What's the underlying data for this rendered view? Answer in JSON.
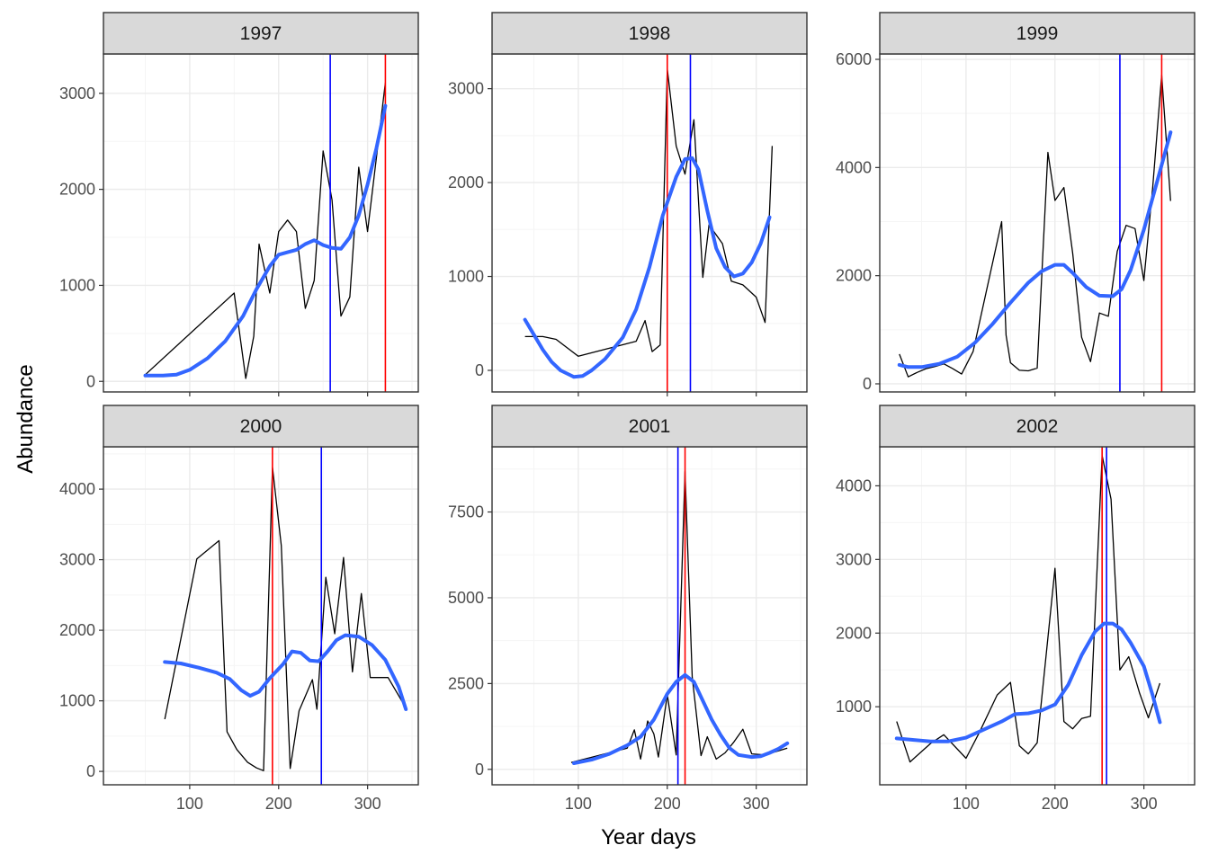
{
  "chart_data": {
    "type": "line",
    "xlabel": "Year days",
    "ylabel": "Abundance",
    "facet_label": "Year",
    "grid": true,
    "theme": "bw",
    "colors": {
      "observed_line": "#000000",
      "smooth_line": "#3366ff",
      "red_vline": "#ff0000",
      "blue_vline": "#0000ff",
      "strip_fill": "#d9d9d9",
      "panel_border": "#333333",
      "grid_major": "#ebebeb",
      "grid_minor": "#f5f5f5"
    },
    "panels": [
      {
        "title": "1997",
        "xlim": [
          3,
          357
        ],
        "ylim": [
          -110,
          3410
        ],
        "x_ticks": [
          100,
          200,
          300
        ],
        "y_ticks": [
          0,
          1000,
          2000,
          3000
        ],
        "y_tick_labels": [
          "0",
          "1000",
          "2000",
          "3000"
        ],
        "show_x_tick_labels": false,
        "red_vline": 320,
        "blue_vline": 258,
        "observed": [
          [
            50,
            70
          ],
          [
            150,
            920
          ],
          [
            163,
            30
          ],
          [
            172,
            470
          ],
          [
            178,
            1430
          ],
          [
            190,
            920
          ],
          [
            200,
            1560
          ],
          [
            210,
            1680
          ],
          [
            220,
            1560
          ],
          [
            230,
            760
          ],
          [
            240,
            1050
          ],
          [
            250,
            2400
          ],
          [
            260,
            1890
          ],
          [
            270,
            680
          ],
          [
            280,
            880
          ],
          [
            290,
            2230
          ],
          [
            300,
            1560
          ],
          [
            320,
            3110
          ]
        ],
        "smooth": [
          [
            50,
            60
          ],
          [
            70,
            60
          ],
          [
            85,
            70
          ],
          [
            100,
            120
          ],
          [
            120,
            240
          ],
          [
            140,
            420
          ],
          [
            160,
            680
          ],
          [
            175,
            960
          ],
          [
            190,
            1200
          ],
          [
            200,
            1320
          ],
          [
            210,
            1345
          ],
          [
            220,
            1370
          ],
          [
            230,
            1430
          ],
          [
            240,
            1470
          ],
          [
            250,
            1420
          ],
          [
            260,
            1390
          ],
          [
            270,
            1380
          ],
          [
            280,
            1500
          ],
          [
            290,
            1730
          ],
          [
            300,
            2050
          ],
          [
            310,
            2430
          ],
          [
            320,
            2870
          ]
        ]
      },
      {
        "title": "1998",
        "xlim": [
          3,
          357
        ],
        "ylim": [
          -230,
          3370
        ],
        "x_ticks": [
          100,
          200,
          300
        ],
        "y_ticks": [
          0,
          1000,
          2000,
          3000
        ],
        "y_tick_labels": [
          "0",
          "1000",
          "2000",
          "3000"
        ],
        "show_x_tick_labels": false,
        "red_vline": 200,
        "blue_vline": 226,
        "observed": [
          [
            40,
            360
          ],
          [
            60,
            360
          ],
          [
            75,
            330
          ],
          [
            100,
            150
          ],
          [
            145,
            260
          ],
          [
            165,
            310
          ],
          [
            175,
            530
          ],
          [
            183,
            200
          ],
          [
            192,
            270
          ],
          [
            200,
            3210
          ],
          [
            210,
            2390
          ],
          [
            220,
            2090
          ],
          [
            230,
            2670
          ],
          [
            240,
            990
          ],
          [
            247,
            1550
          ],
          [
            262,
            1350
          ],
          [
            272,
            950
          ],
          [
            285,
            910
          ],
          [
            300,
            780
          ],
          [
            310,
            510
          ],
          [
            318,
            2390
          ]
        ],
        "smooth": [
          [
            40,
            540
          ],
          [
            50,
            380
          ],
          [
            60,
            220
          ],
          [
            70,
            90
          ],
          [
            80,
            0
          ],
          [
            95,
            -70
          ],
          [
            105,
            -60
          ],
          [
            115,
            0
          ],
          [
            130,
            120
          ],
          [
            150,
            350
          ],
          [
            165,
            650
          ],
          [
            180,
            1100
          ],
          [
            195,
            1650
          ],
          [
            210,
            2060
          ],
          [
            220,
            2250
          ],
          [
            228,
            2260
          ],
          [
            235,
            2140
          ],
          [
            245,
            1700
          ],
          [
            255,
            1300
          ],
          [
            265,
            1100
          ],
          [
            275,
            1000
          ],
          [
            285,
            1030
          ],
          [
            295,
            1150
          ],
          [
            305,
            1350
          ],
          [
            315,
            1630
          ]
        ]
      },
      {
        "title": "1999",
        "xlim": [
          3,
          357
        ],
        "ylim": [
          -150,
          6100
        ],
        "x_ticks": [
          100,
          200,
          300
        ],
        "y_ticks": [
          0,
          2000,
          4000,
          6000
        ],
        "y_tick_labels": [
          "0",
          "2000",
          "4000",
          "6000"
        ],
        "show_x_tick_labels": false,
        "red_vline": 320,
        "blue_vline": 273,
        "observed": [
          [
            25,
            550
          ],
          [
            35,
            130
          ],
          [
            45,
            210
          ],
          [
            55,
            280
          ],
          [
            65,
            320
          ],
          [
            75,
            370
          ],
          [
            85,
            280
          ],
          [
            95,
            180
          ],
          [
            108,
            600
          ],
          [
            140,
            3000
          ],
          [
            145,
            900
          ],
          [
            150,
            390
          ],
          [
            160,
            250
          ],
          [
            170,
            240
          ],
          [
            180,
            290
          ],
          [
            192,
            4280
          ],
          [
            200,
            3390
          ],
          [
            210,
            3630
          ],
          [
            220,
            2410
          ],
          [
            230,
            860
          ],
          [
            240,
            410
          ],
          [
            250,
            1310
          ],
          [
            260,
            1250
          ],
          [
            270,
            2450
          ],
          [
            280,
            2930
          ],
          [
            290,
            2870
          ],
          [
            300,
            1910
          ],
          [
            310,
            3650
          ],
          [
            320,
            5710
          ],
          [
            330,
            3380
          ]
        ],
        "smooth": [
          [
            25,
            350
          ],
          [
            35,
            310
          ],
          [
            50,
            310
          ],
          [
            70,
            370
          ],
          [
            90,
            500
          ],
          [
            110,
            760
          ],
          [
            130,
            1110
          ],
          [
            150,
            1500
          ],
          [
            170,
            1870
          ],
          [
            185,
            2080
          ],
          [
            200,
            2200
          ],
          [
            210,
            2200
          ],
          [
            220,
            2050
          ],
          [
            235,
            1790
          ],
          [
            250,
            1630
          ],
          [
            265,
            1620
          ],
          [
            275,
            1750
          ],
          [
            285,
            2100
          ],
          [
            300,
            2850
          ],
          [
            315,
            3750
          ],
          [
            330,
            4650
          ]
        ]
      },
      {
        "title": "2000",
        "xlim": [
          3,
          357
        ],
        "ylim": [
          -190,
          4600
        ],
        "x_ticks": [
          100,
          200,
          300
        ],
        "y_ticks": [
          0,
          1000,
          2000,
          3000,
          4000
        ],
        "y_tick_labels": [
          "0",
          "1000",
          "2000",
          "3000",
          "4000"
        ],
        "show_x_tick_labels": true,
        "red_vline": 193,
        "blue_vline": 248,
        "observed": [
          [
            72,
            740
          ],
          [
            108,
            3010
          ],
          [
            133,
            3270
          ],
          [
            142,
            560
          ],
          [
            153,
            310
          ],
          [
            165,
            130
          ],
          [
            175,
            50
          ],
          [
            183,
            10
          ],
          [
            193,
            4310
          ],
          [
            203,
            3200
          ],
          [
            213,
            40
          ],
          [
            223,
            860
          ],
          [
            238,
            1300
          ],
          [
            243,
            880
          ],
          [
            253,
            2750
          ],
          [
            263,
            1950
          ],
          [
            273,
            3030
          ],
          [
            283,
            1410
          ],
          [
            293,
            2520
          ],
          [
            303,
            1330
          ],
          [
            313,
            1330
          ],
          [
            323,
            1330
          ],
          [
            343,
            900
          ]
        ],
        "smooth": [
          [
            72,
            1550
          ],
          [
            90,
            1530
          ],
          [
            110,
            1470
          ],
          [
            130,
            1400
          ],
          [
            145,
            1310
          ],
          [
            158,
            1150
          ],
          [
            168,
            1070
          ],
          [
            178,
            1130
          ],
          [
            190,
            1320
          ],
          [
            205,
            1520
          ],
          [
            215,
            1700
          ],
          [
            225,
            1680
          ],
          [
            235,
            1570
          ],
          [
            245,
            1560
          ],
          [
            255,
            1700
          ],
          [
            265,
            1860
          ],
          [
            275,
            1930
          ],
          [
            290,
            1910
          ],
          [
            305,
            1790
          ],
          [
            320,
            1580
          ],
          [
            335,
            1200
          ],
          [
            343,
            880
          ]
        ]
      },
      {
        "title": "2001",
        "xlim": [
          3,
          357
        ],
        "ylim": [
          -450,
          9400
        ],
        "x_ticks": [
          100,
          200,
          300
        ],
        "y_ticks": [
          0,
          2500,
          5000,
          7500
        ],
        "y_tick_labels": [
          "0",
          "2500",
          "5000",
          "7500"
        ],
        "show_x_tick_labels": true,
        "red_vline": 220,
        "blue_vline": 212,
        "observed": [
          [
            92,
            200
          ],
          [
            155,
            620
          ],
          [
            163,
            1150
          ],
          [
            170,
            300
          ],
          [
            178,
            1410
          ],
          [
            185,
            1030
          ],
          [
            190,
            360
          ],
          [
            200,
            2180
          ],
          [
            210,
            420
          ],
          [
            220,
            8680
          ],
          [
            228,
            2700
          ],
          [
            238,
            400
          ],
          [
            245,
            950
          ],
          [
            255,
            300
          ],
          [
            265,
            480
          ],
          [
            275,
            800
          ],
          [
            285,
            1170
          ],
          [
            295,
            450
          ],
          [
            310,
            420
          ],
          [
            335,
            620
          ]
        ],
        "smooth": [
          [
            95,
            180
          ],
          [
            115,
            280
          ],
          [
            135,
            450
          ],
          [
            155,
            700
          ],
          [
            170,
            950
          ],
          [
            185,
            1450
          ],
          [
            200,
            2200
          ],
          [
            210,
            2550
          ],
          [
            220,
            2750
          ],
          [
            230,
            2550
          ],
          [
            240,
            2000
          ],
          [
            250,
            1450
          ],
          [
            260,
            1000
          ],
          [
            270,
            620
          ],
          [
            280,
            420
          ],
          [
            295,
            360
          ],
          [
            305,
            380
          ],
          [
            315,
            480
          ],
          [
            325,
            600
          ],
          [
            335,
            760
          ]
        ]
      },
      {
        "title": "2002",
        "xlim": [
          3,
          357
        ],
        "ylim": [
          -60,
          4530
        ],
        "x_ticks": [
          100,
          200,
          300
        ],
        "y_ticks": [
          1000,
          2000,
          3000,
          4000
        ],
        "y_tick_labels": [
          "1000",
          "2000",
          "3000",
          "4000"
        ],
        "show_x_tick_labels": true,
        "red_vline": 253,
        "blue_vline": 258,
        "observed": [
          [
            22,
            800
          ],
          [
            37,
            250
          ],
          [
            60,
            500
          ],
          [
            75,
            620
          ],
          [
            100,
            300
          ],
          [
            115,
            650
          ],
          [
            135,
            1160
          ],
          [
            150,
            1330
          ],
          [
            160,
            470
          ],
          [
            170,
            360
          ],
          [
            180,
            510
          ],
          [
            200,
            2880
          ],
          [
            210,
            800
          ],
          [
            220,
            700
          ],
          [
            230,
            840
          ],
          [
            240,
            870
          ],
          [
            253,
            4410
          ],
          [
            263,
            3820
          ],
          [
            273,
            1500
          ],
          [
            283,
            1680
          ],
          [
            295,
            1190
          ],
          [
            305,
            850
          ],
          [
            318,
            1320
          ]
        ],
        "smooth": [
          [
            22,
            570
          ],
          [
            40,
            550
          ],
          [
            60,
            530
          ],
          [
            80,
            530
          ],
          [
            100,
            580
          ],
          [
            120,
            690
          ],
          [
            140,
            800
          ],
          [
            155,
            900
          ],
          [
            170,
            910
          ],
          [
            185,
            950
          ],
          [
            200,
            1030
          ],
          [
            215,
            1300
          ],
          [
            230,
            1700
          ],
          [
            245,
            2020
          ],
          [
            255,
            2130
          ],
          [
            265,
            2130
          ],
          [
            275,
            2050
          ],
          [
            285,
            1870
          ],
          [
            300,
            1550
          ],
          [
            310,
            1150
          ],
          [
            318,
            790
          ]
        ]
      }
    ]
  }
}
